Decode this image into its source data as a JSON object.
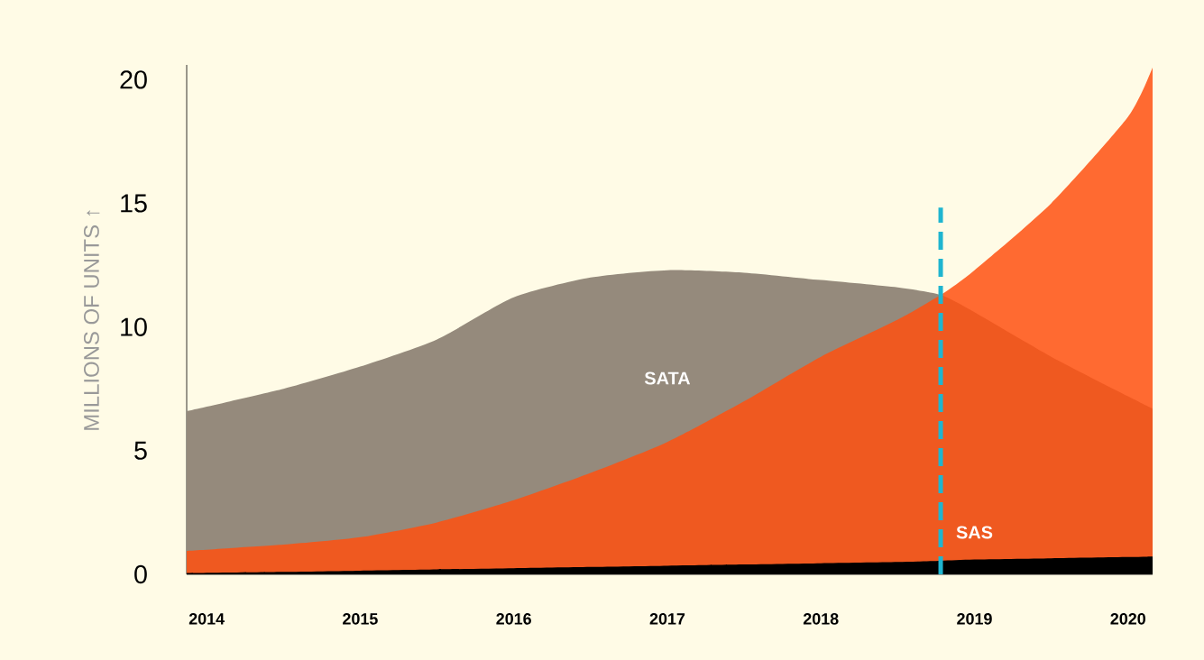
{
  "chart_data": {
    "type": "area",
    "ylabel": "MILLIONS OF UNITS ↑",
    "x": [
      2013.87,
      2014.5,
      2015,
      2015.5,
      2016,
      2016.5,
      2017,
      2017.5,
      2018,
      2018.5,
      2018.78,
      2019,
      2019.5,
      2020,
      2020.16
    ],
    "series": [
      {
        "name": "SATA",
        "color": "#958a7c",
        "values": [
          6.6,
          7.5,
          8.4,
          9.5,
          11.2,
          12.0,
          12.3,
          12.2,
          11.9,
          11.6,
          11.3,
          10.6,
          8.8,
          7.2,
          6.7
        ]
      },
      {
        "color": "#ff5010",
        "values": [
          0.95,
          1.2,
          1.5,
          2.1,
          3.0,
          4.1,
          5.35,
          7.0,
          8.8,
          10.3,
          11.3,
          12.3,
          15.0,
          18.5,
          20.5
        ]
      },
      {
        "name": "SAS",
        "color": "#000000",
        "values": [
          0.05,
          0.1,
          0.15,
          0.2,
          0.25,
          0.3,
          0.35,
          0.4,
          0.45,
          0.5,
          0.55,
          0.6,
          0.65,
          0.7,
          0.72
        ]
      }
    ],
    "xlim": [
      2013.87,
      2020.16
    ],
    "ylim": [
      0,
      20.6
    ],
    "xticks": [
      2014,
      2015,
      2016,
      2017,
      2018,
      2019,
      2020
    ],
    "yticks": [
      0,
      5,
      10,
      15,
      20
    ],
    "ref_lines": [
      {
        "axis": "x",
        "value": 2018.78,
        "color": "#1fb5d0",
        "line_style": "dashed"
      }
    ],
    "grid": false
  }
}
